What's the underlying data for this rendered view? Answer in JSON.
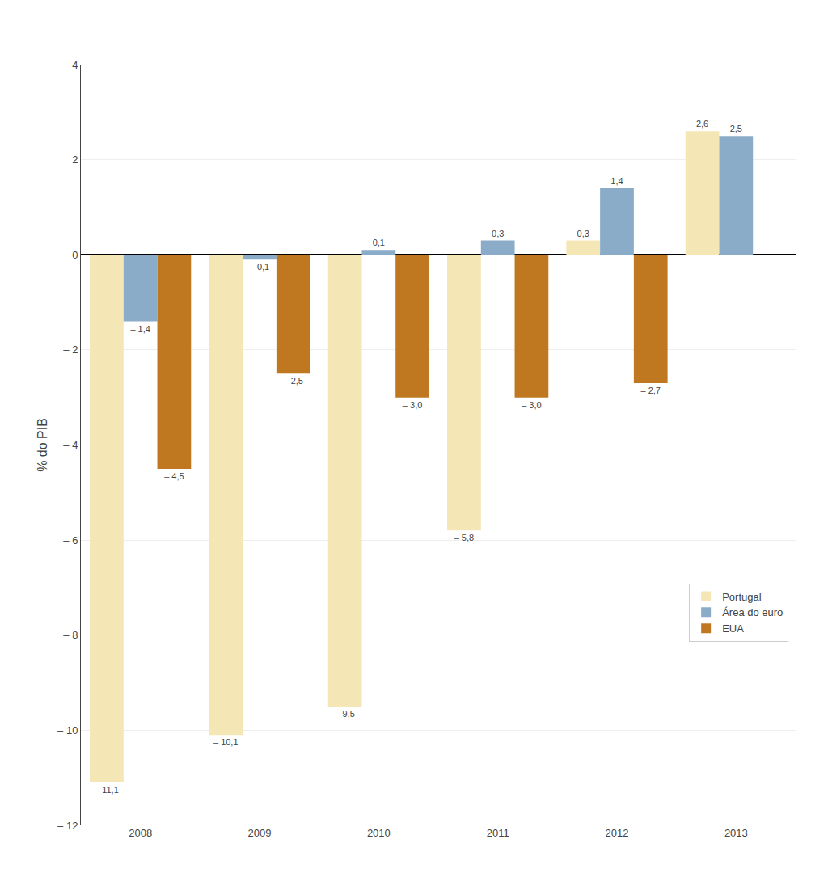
{
  "chart_data": {
    "type": "bar",
    "ylabel": "% do PIB",
    "categories": [
      "2008",
      "2009",
      "2010",
      "2011",
      "2012",
      "2013"
    ],
    "series": [
      {
        "name": "Portugal",
        "color": "#f5e6b5",
        "values": [
          -11.1,
          -10.1,
          -9.5,
          -5.8,
          0.3,
          2.6
        ],
        "value_labels": [
          "– 11,1",
          "– 10,1",
          "– 9,5",
          "– 5,8",
          "0,3",
          "2,6"
        ]
      },
      {
        "name": "Área do euro",
        "color": "#8aacc8",
        "values": [
          -1.4,
          -0.1,
          0.1,
          0.3,
          1.4,
          2.5
        ],
        "value_labels": [
          "– 1,4",
          "– 0,1",
          "0,1",
          "0,3",
          "1,4",
          "2,5"
        ]
      },
      {
        "name": "EUA",
        "color": "#c07820",
        "values": [
          -4.5,
          -2.5,
          -3.0,
          -3.0,
          -2.7,
          null
        ],
        "value_labels": [
          "– 4,5",
          "– 2,5",
          "– 3,0",
          "– 3,0",
          "– 2,7",
          null
        ]
      }
    ],
    "ylim": [
      -12,
      4
    ],
    "yticks": [
      {
        "value": -12,
        "label": "– 12"
      },
      {
        "value": -10,
        "label": "– 10"
      },
      {
        "value": -8,
        "label": "– 8"
      },
      {
        "value": -6,
        "label": "– 6"
      },
      {
        "value": -4,
        "label": "– 4"
      },
      {
        "value": -2,
        "label": "– 2"
      },
      0,
      2,
      4
    ],
    "grid": true,
    "legend": "lower right",
    "data_labels": true
  }
}
